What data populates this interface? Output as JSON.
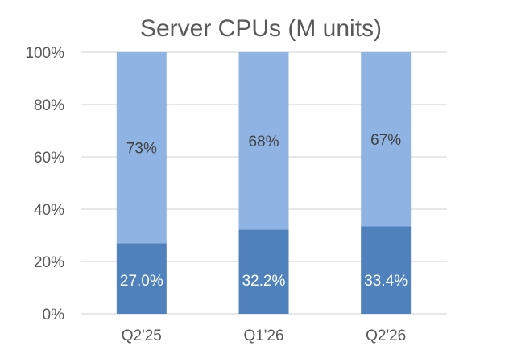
{
  "chart_data": {
    "type": "bar",
    "stacked": true,
    "title": "Server CPUs (M units)",
    "xlabel": "",
    "ylabel": "",
    "ylim": [
      0,
      100
    ],
    "y_ticks": [
      "0%",
      "20%",
      "40%",
      "60%",
      "80%",
      "100%"
    ],
    "grid": true,
    "legend": "none",
    "categories": [
      "Q2'25",
      "Q1'26",
      "Q2'26"
    ],
    "series": [
      {
        "values": [
          27.0,
          32.2,
          33.4
        ],
        "labels": [
          "27.0%",
          "32.2%",
          "33.4%"
        ],
        "color": "#4f81bd"
      },
      {
        "values": [
          73,
          68,
          67
        ],
        "labels": [
          "73%",
          "68%",
          "67%"
        ],
        "color": "#8fb4e3"
      }
    ]
  }
}
